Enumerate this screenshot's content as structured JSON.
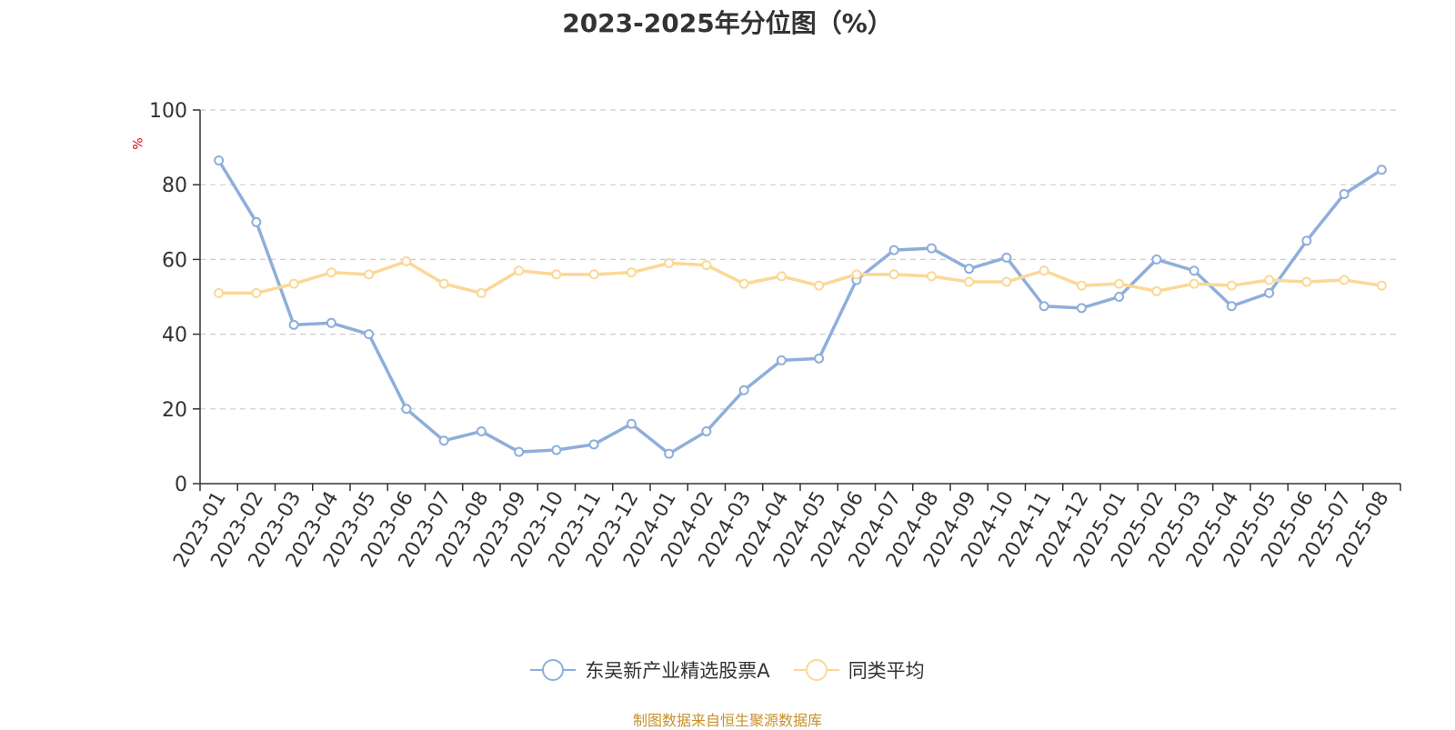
{
  "chart_data": {
    "type": "line",
    "title": "2023-2025年分位图（%）",
    "ylabel": "%",
    "xlabel": "",
    "ylim": [
      0,
      100
    ],
    "yticks": [
      0,
      20,
      40,
      60,
      80,
      100
    ],
    "grid": true,
    "legend_position": "bottom",
    "categories": [
      "2023-01",
      "2023-02",
      "2023-03",
      "2023-04",
      "2023-05",
      "2023-06",
      "2023-07",
      "2023-08",
      "2023-09",
      "2023-10",
      "2023-11",
      "2023-12",
      "2024-01",
      "2024-02",
      "2024-03",
      "2024-04",
      "2024-05",
      "2024-06",
      "2024-07",
      "2024-08",
      "2024-09",
      "2024-10",
      "2024-11",
      "2024-12",
      "2025-01",
      "2025-02",
      "2025-03",
      "2025-04",
      "2025-05",
      "2025-06",
      "2025-07",
      "2025-08"
    ],
    "series": [
      {
        "name": "东吴新产业精选股票A",
        "color": "#8eaedb",
        "values": [
          86.5,
          70,
          42.5,
          43,
          40,
          20,
          11.5,
          14,
          8.5,
          9,
          10.5,
          16,
          8,
          14,
          25,
          33,
          33.5,
          54.5,
          62.5,
          63,
          57.5,
          60.5,
          47.5,
          47,
          50,
          60,
          57,
          47.5,
          51,
          65,
          77.5,
          84
        ]
      },
      {
        "name": "同类平均",
        "color": "#fbd896",
        "values": [
          51,
          51,
          53.5,
          56.5,
          56,
          59.5,
          53.5,
          51,
          57,
          56,
          56,
          56.5,
          59,
          58.5,
          53.5,
          55.5,
          53,
          56,
          56,
          55.5,
          54,
          54,
          57,
          53,
          53.5,
          51.5,
          53.5,
          53,
          54.5,
          54,
          54.5,
          53
        ]
      }
    ]
  },
  "source": "制图数据来自恒生聚源数据库"
}
